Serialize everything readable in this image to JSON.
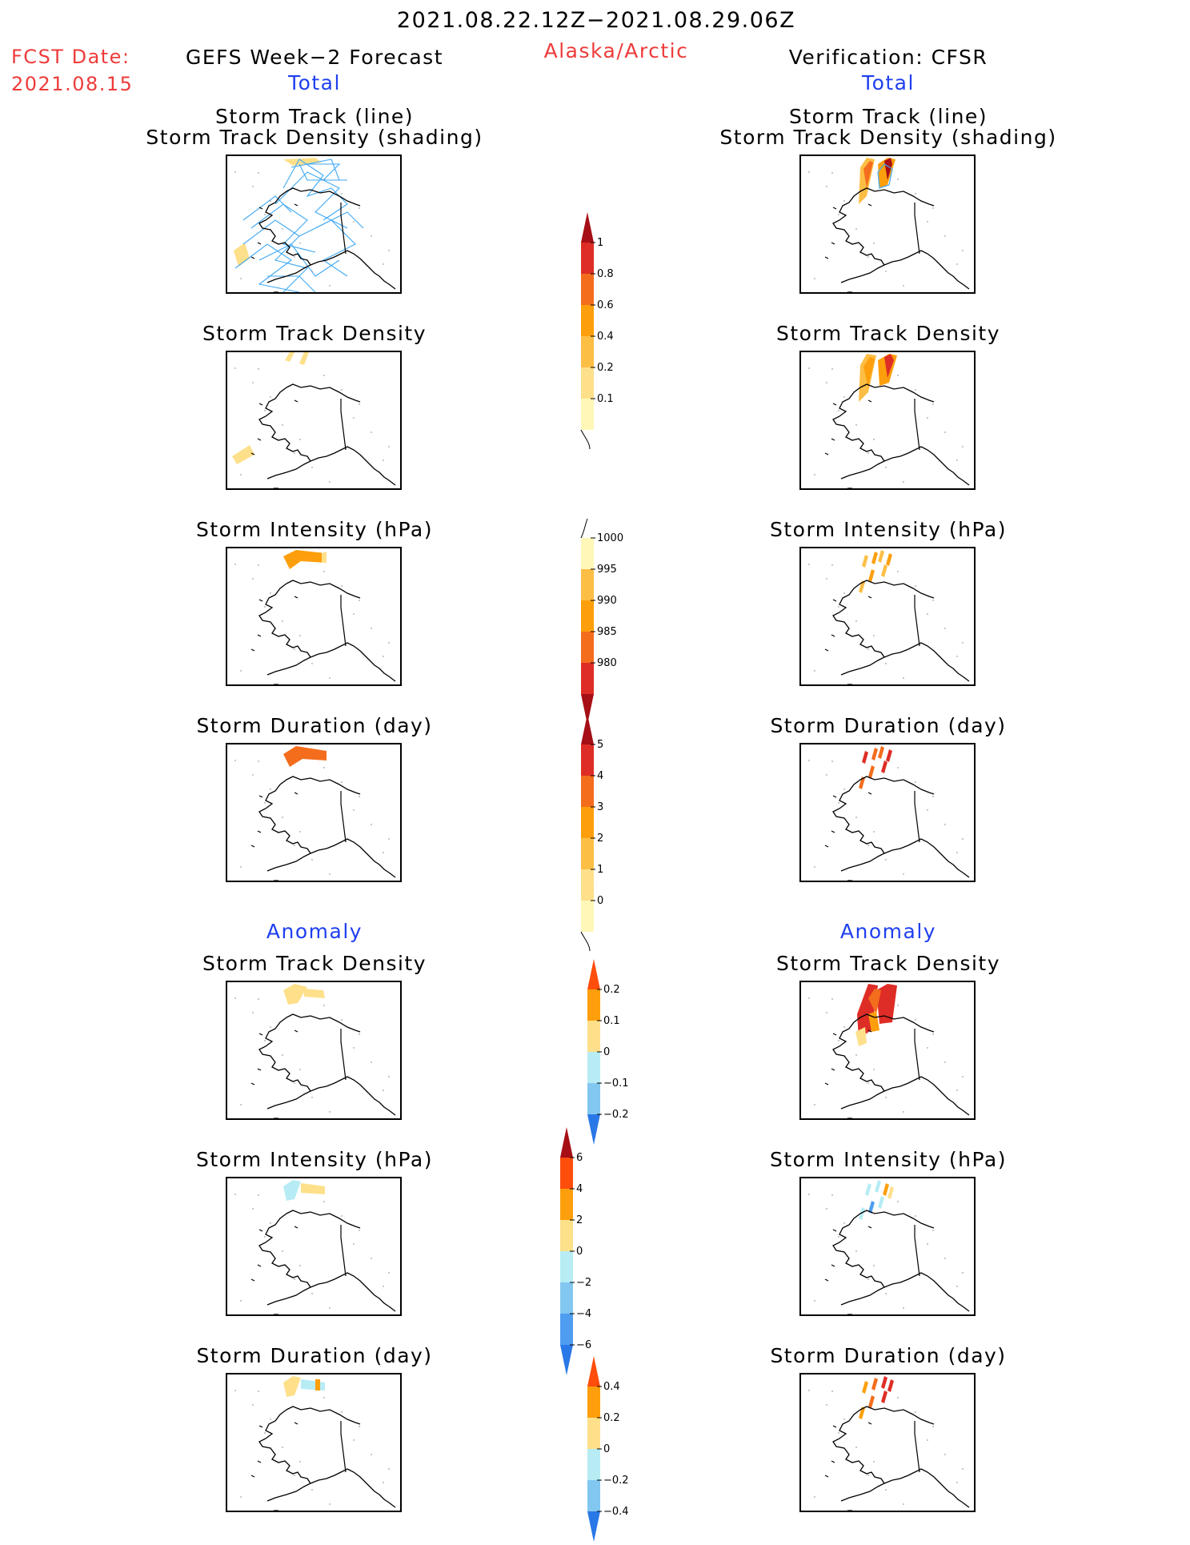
{
  "header": {
    "date_range": "2021.08.22.12Z−2021.08.29.06Z",
    "fcst_label": "FCST Date:",
    "fcst_date": "2021.08.15",
    "left_title": "GEFS Week−2 Forecast",
    "region": "Alaska/Arctic",
    "right_title": "Verification: CFSR",
    "total_label": "Total",
    "anomaly_label": "Anomaly"
  },
  "panel_titles": {
    "track_line": "Storm Track (line)",
    "track_shading": "Storm Track Density (shading)",
    "density": "Storm Track Density",
    "intensity": "Storm Intensity (hPa)",
    "duration": "Storm Duration (day)"
  },
  "colorbars": [
    {
      "name": "density",
      "labels": [
        "1",
        "0.8",
        "0.6",
        "0.4",
        "0.2",
        "0.1"
      ],
      "colors": [
        "#a50f15",
        "#de2d26",
        "#f46d1d",
        "#fd9f0c",
        "#fdbe45",
        "#fee08b",
        "#fff7b8"
      ]
    },
    {
      "name": "intensity",
      "labels": [
        "1000",
        "995",
        "990",
        "985",
        "980"
      ],
      "colors": [
        "#fff7b8",
        "#fdbe45",
        "#fd9f0c",
        "#f46d1d",
        "#de2d26",
        "#a50f15"
      ]
    },
    {
      "name": "duration",
      "labels": [
        "5",
        "4",
        "3",
        "2",
        "1",
        "0"
      ],
      "colors": [
        "#a50f15",
        "#de2d26",
        "#f46d1d",
        "#fd9f0c",
        "#fdbe45",
        "#fee08b",
        "#fff7b8"
      ]
    },
    {
      "name": "density-anomaly",
      "labels": [
        "0.2",
        "0.1",
        "0",
        "−0.1",
        "−0.2"
      ],
      "colors": [
        "#ff4d0c",
        "#fd9f0c",
        "#fee08b",
        "#b7ecf5",
        "#82c7f0",
        "#2a78e8"
      ]
    },
    {
      "name": "intensity-anomaly",
      "labels": [
        "6",
        "4",
        "2",
        "0",
        "−2",
        "−4",
        "−6"
      ],
      "colors": [
        "#a50f15",
        "#ff4d0c",
        "#fd9f0c",
        "#fee08b",
        "#b7ecf5",
        "#82c7f0",
        "#4f9df0",
        "#2a78e8"
      ]
    },
    {
      "name": "duration-anomaly",
      "labels": [
        "0.4",
        "0.2",
        "0",
        "−0.2",
        "−0.4"
      ],
      "colors": [
        "#ff4d0c",
        "#fd9f0c",
        "#fee08b",
        "#b7ecf5",
        "#82c7f0",
        "#2a78e8"
      ]
    }
  ],
  "colors": {
    "track_line": "#3fa9f5",
    "yellow": "#fee08b",
    "light_orange": "#fdbe45",
    "orange": "#fd9f0c",
    "dark_orange": "#f46d1d",
    "red": "#de2d26",
    "dark_red": "#a50f15",
    "light_blue": "#b7ecf5",
    "blue": "#4f9df0"
  }
}
